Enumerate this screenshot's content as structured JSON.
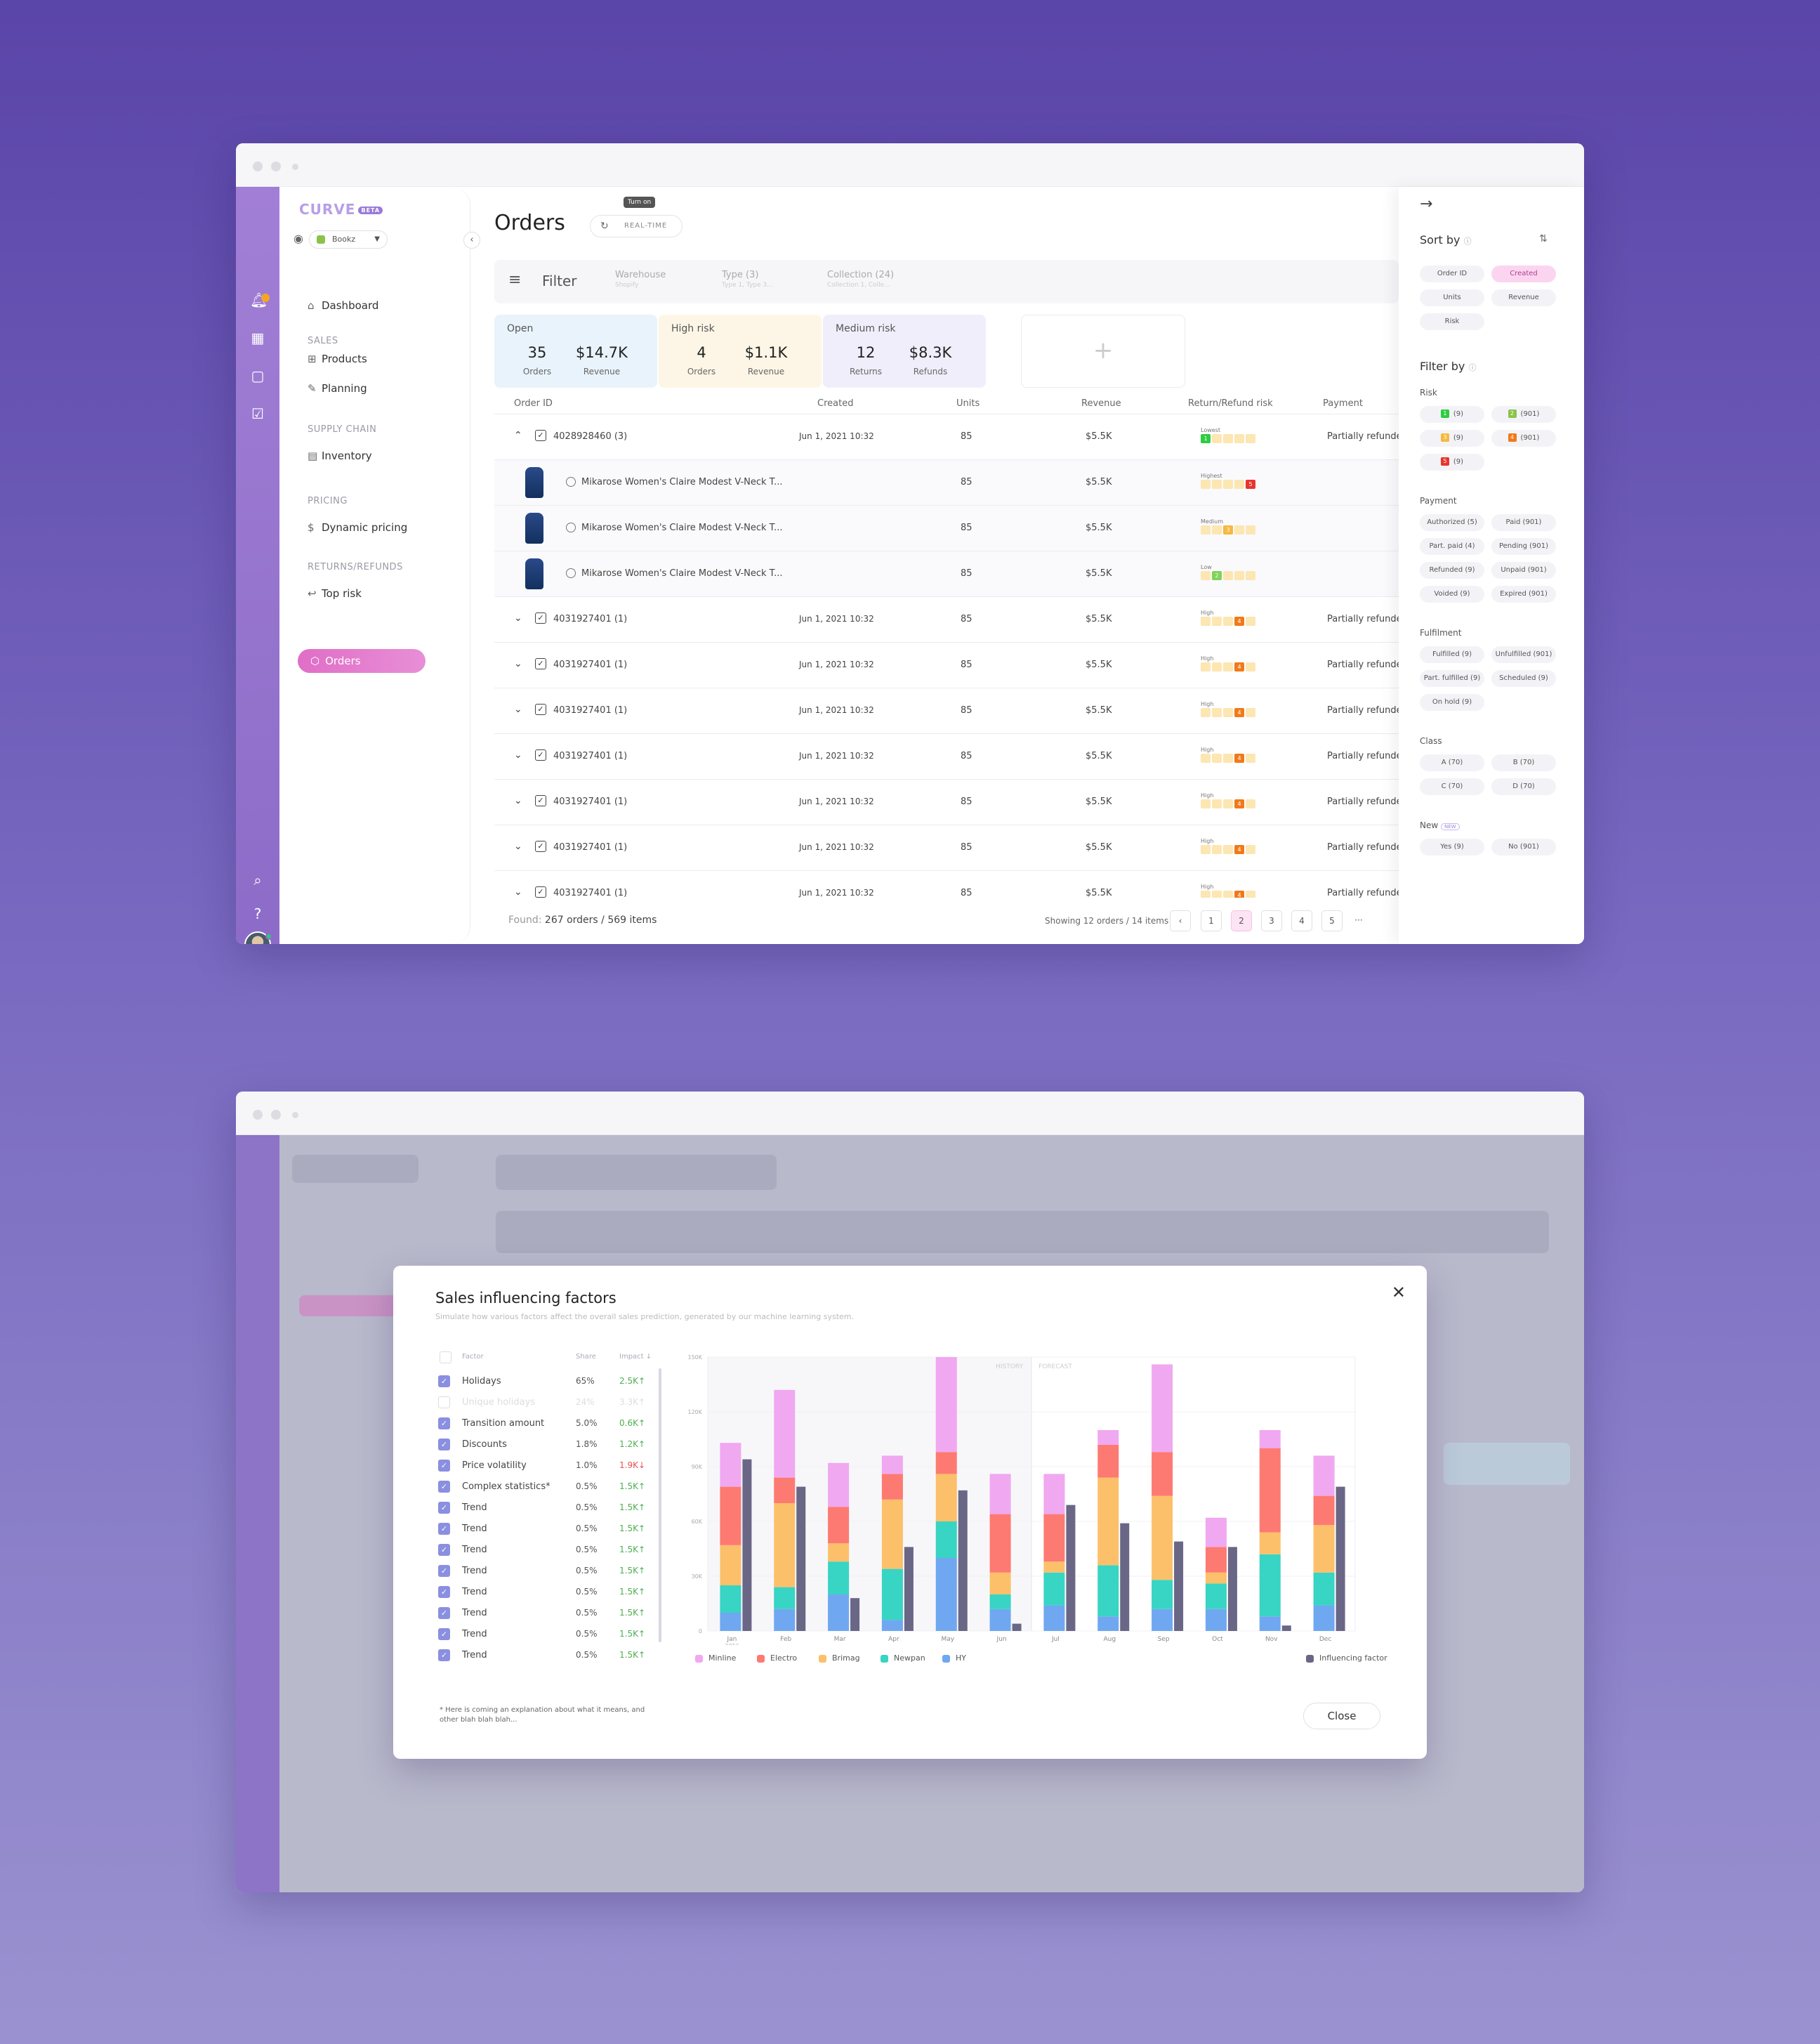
{
  "orders": {
    "logo": "CURVE",
    "logo_badge": "BETA",
    "store": "Bookz",
    "nav": {
      "dashboard": "Dashboard",
      "sec_sales": "SALES",
      "products": "Products",
      "planning": "Planning",
      "sec_supply": "SUPPLY CHAIN",
      "inventory": "Inventory",
      "sec_pricing": "PRICING",
      "dynamic_pricing": "Dynamic pricing",
      "sec_returns": "RETURNS/REFUNDS",
      "top_risk": "Top risk",
      "orders": "Orders"
    },
    "title": "Orders",
    "tooltip": "Turn on",
    "realtime": "REAL-TIME",
    "filter": {
      "label": "Filter",
      "cols": [
        {
          "label": "Warehouse",
          "sub": "Shopify"
        },
        {
          "label": "Type (3)",
          "sub": "Type 1, Type 3..."
        },
        {
          "label": "Collection (24)",
          "sub": "Collection 1, Colle..."
        }
      ]
    },
    "cards": [
      {
        "title": "Open",
        "v1": "35",
        "l1": "Orders",
        "v2": "$14.7K",
        "l2": "Revenue",
        "bg": "#e9f3fb"
      },
      {
        "title": "High risk",
        "v1": "4",
        "l1": "Orders",
        "v2": "$1.1K",
        "l2": "Revenue",
        "bg": "#fdf6e6"
      },
      {
        "title": "Medium risk",
        "v1": "12",
        "l1": "Returns",
        "v2": "$8.3K",
        "l2": "Refunds",
        "bg": "#f1eefb"
      }
    ],
    "card_add": "+",
    "columns": [
      "Order ID",
      "Created",
      "Units",
      "Revenue",
      "Return/Refund risk",
      "Payment"
    ],
    "rows": [
      {
        "type": "order",
        "expanded": true,
        "id": "4028928460 (3)",
        "created": "Jun 1, 2021  10:32",
        "units": "85",
        "revenue": "$5.5K",
        "risk_label": "Lowest",
        "risk_level": 1,
        "payment": "Partially refunded"
      },
      {
        "type": "product",
        "name": "Mikarose Women's Claire Modest V-Neck T...",
        "units": "85",
        "revenue": "$5.5K",
        "risk_label": "Highest",
        "risk_level": 5
      },
      {
        "type": "product",
        "name": "Mikarose Women's Claire Modest V-Neck T...",
        "units": "85",
        "revenue": "$5.5K",
        "risk_label": "Medium",
        "risk_level": 3
      },
      {
        "type": "product",
        "name": "Mikarose Women's Claire Modest V-Neck T...",
        "units": "85",
        "revenue": "$5.5K",
        "risk_label": "Low",
        "risk_level": 2
      },
      {
        "type": "order",
        "id": "4031927401 (1)",
        "created": "Jun 1, 2021  10:32",
        "units": "85",
        "revenue": "$5.5K",
        "risk_label": "High",
        "risk_level": 4,
        "payment": "Partially refunded"
      },
      {
        "type": "order",
        "id": "4031927401 (1)",
        "created": "Jun 1, 2021  10:32",
        "units": "85",
        "revenue": "$5.5K",
        "risk_label": "High",
        "risk_level": 4,
        "payment": "Partially refunded"
      },
      {
        "type": "order",
        "id": "4031927401 (1)",
        "created": "Jun 1, 2021  10:32",
        "units": "85",
        "revenue": "$5.5K",
        "risk_label": "High",
        "risk_level": 4,
        "payment": "Partially refunded"
      },
      {
        "type": "order",
        "id": "4031927401 (1)",
        "created": "Jun 1, 2021  10:32",
        "units": "85",
        "revenue": "$5.5K",
        "risk_label": "High",
        "risk_level": 4,
        "payment": "Partially refunded"
      },
      {
        "type": "order",
        "id": "4031927401 (1)",
        "created": "Jun 1, 2021  10:32",
        "units": "85",
        "revenue": "$5.5K",
        "risk_label": "High",
        "risk_level": 4,
        "payment": "Partially refunded"
      },
      {
        "type": "order",
        "id": "4031927401 (1)",
        "created": "Jun 1, 2021  10:32",
        "units": "85",
        "revenue": "$5.5K",
        "risk_label": "High",
        "risk_level": 4,
        "payment": "Partially refunded"
      },
      {
        "type": "order",
        "id": "4031927401 (1)",
        "created": "Jun 1, 2021  10:32",
        "units": "85",
        "revenue": "$5.5K",
        "risk_label": "High",
        "risk_level": 4,
        "payment": "Partially refunded"
      }
    ],
    "found_prefix": "Found:",
    "found": "267 orders / 569 items",
    "showing": "Showing 12 orders / 14 items",
    "pages": [
      "1",
      "2",
      "3",
      "4",
      "5"
    ],
    "current_page": "2",
    "more": "···",
    "panel": {
      "sort_by": "Sort by",
      "sort_options": [
        "Order ID",
        "Created",
        "Units",
        "Revenue",
        "Risk"
      ],
      "sort_active": "Created",
      "filter_by": "Filter by",
      "risk_label": "Risk",
      "risk_chips": [
        {
          "n": "1",
          "c": "(9)",
          "color": "#2ecc40"
        },
        {
          "n": "2",
          "c": "(901)",
          "color": "#8bc34a"
        },
        {
          "n": "3",
          "c": "(9)",
          "color": "#f5b942"
        },
        {
          "n": "4",
          "c": "(901)",
          "color": "#f07a1a"
        },
        {
          "n": "5",
          "c": "(9)",
          "color": "#e8342e"
        }
      ],
      "payment_label": "Payment",
      "payment_chips": [
        "Authorized (5)",
        "Paid (901)",
        "Part. paid (4)",
        "Pending (901)",
        "Refunded (9)",
        "Unpaid (901)",
        "Voided (9)",
        "Expired (901)"
      ],
      "fulfilment_label": "Fulfilment",
      "fulfilment_chips": [
        "Fulfilled (9)",
        "Unfulfilled (901)",
        "Part. fulfilled (9)",
        "Scheduled (9)",
        "On hold (9)"
      ],
      "class_label": "Class",
      "class_chips": [
        "A  (70)",
        "B  (70)",
        "C  (70)",
        "D  (70)"
      ],
      "new_label": "New",
      "new_badge": "NEW",
      "new_chips": [
        "Yes (9)",
        "No (901)"
      ]
    }
  },
  "modal": {
    "title": "Sales influencing factors",
    "subtitle": "Simulate how various factors affect the overall sales prediction, generated by our machine learning system.",
    "col_factor": "Factor",
    "col_share": "Share",
    "col_impact": "Impact ↓",
    "factors": [
      {
        "name": "Holidays",
        "share": "65%",
        "impact": "2.5K↑",
        "on": true,
        "dir": "up"
      },
      {
        "name": "Unique holidays",
        "share": "24%",
        "impact": "3.3K↑",
        "on": false,
        "dir": "up"
      },
      {
        "name": "Transition amount",
        "share": "5.0%",
        "impact": "0.6K↑",
        "on": true,
        "dir": "up"
      },
      {
        "name": "Discounts",
        "share": "1.8%",
        "impact": "1.2K↑",
        "on": true,
        "dir": "up"
      },
      {
        "name": "Price volatility",
        "share": "1.0%",
        "impact": "1.9K↓",
        "on": true,
        "dir": "down"
      },
      {
        "name": "Complex statistics*",
        "share": "0.5%",
        "impact": "1.5K↑",
        "on": true,
        "dir": "up"
      },
      {
        "name": "Trend",
        "share": "0.5%",
        "impact": "1.5K↑",
        "on": true,
        "dir": "up"
      },
      {
        "name": "Trend",
        "share": "0.5%",
        "impact": "1.5K↑",
        "on": true,
        "dir": "up"
      },
      {
        "name": "Trend",
        "share": "0.5%",
        "impact": "1.5K↑",
        "on": true,
        "dir": "up"
      },
      {
        "name": "Trend",
        "share": "0.5%",
        "impact": "1.5K↑",
        "on": true,
        "dir": "up"
      },
      {
        "name": "Trend",
        "share": "0.5%",
        "impact": "1.5K↑",
        "on": true,
        "dir": "up"
      },
      {
        "name": "Trend",
        "share": "0.5%",
        "impact": "1.5K↑",
        "on": true,
        "dir": "up"
      },
      {
        "name": "Trend",
        "share": "0.5%",
        "impact": "1.5K↑",
        "on": true,
        "dir": "up"
      },
      {
        "name": "Trend",
        "share": "0.5%",
        "impact": "1.5K↑",
        "on": true,
        "dir": "up"
      }
    ],
    "footnote": "* Here is coming an explanation about what it means, and other blah blah blah...",
    "close_label": "Close"
  },
  "chart_data": {
    "type": "bar",
    "stacked": true,
    "categories": [
      "Jan 2016",
      "Feb",
      "Mar",
      "Apr",
      "May",
      "Jun",
      "Jul",
      "Aug",
      "Sep",
      "Oct",
      "Nov",
      "Dec"
    ],
    "region_labels": {
      "history": "HISTORY",
      "forecast": "FORECAST"
    },
    "history_months": 6,
    "y_ticks": [
      "0",
      "30K",
      "60K",
      "90K",
      "120K",
      "150K"
    ],
    "ylim": [
      0,
      150000
    ],
    "series": [
      {
        "name": "HY",
        "color": "#6fa8f0",
        "values": [
          10000,
          12000,
          20000,
          6000,
          40000,
          12000,
          14000,
          8000,
          12000,
          12000,
          8000,
          14000
        ]
      },
      {
        "name": "Newpan",
        "color": "#38d4c4",
        "values": [
          15000,
          12000,
          18000,
          28000,
          20000,
          8000,
          18000,
          28000,
          16000,
          14000,
          34000,
          18000
        ]
      },
      {
        "name": "Brimag",
        "color": "#fcc06a",
        "values": [
          22000,
          46000,
          10000,
          38000,
          26000,
          12000,
          6000,
          48000,
          46000,
          6000,
          12000,
          26000
        ]
      },
      {
        "name": "Electro",
        "color": "#fd7a72",
        "values": [
          32000,
          14000,
          20000,
          14000,
          12000,
          32000,
          26000,
          18000,
          24000,
          14000,
          46000,
          16000
        ]
      },
      {
        "name": "Minline",
        "color": "#f0a8f0",
        "values": [
          24000,
          48000,
          24000,
          10000,
          52000,
          22000,
          22000,
          8000,
          48000,
          16000,
          10000,
          22000
        ]
      }
    ],
    "influencing_factor": {
      "name": "Influencing factor",
      "color": "#6a6686",
      "values": [
        94000,
        79000,
        18000,
        46000,
        77000,
        4000,
        69000,
        59000,
        49000,
        46000,
        3000,
        79000
      ]
    }
  }
}
